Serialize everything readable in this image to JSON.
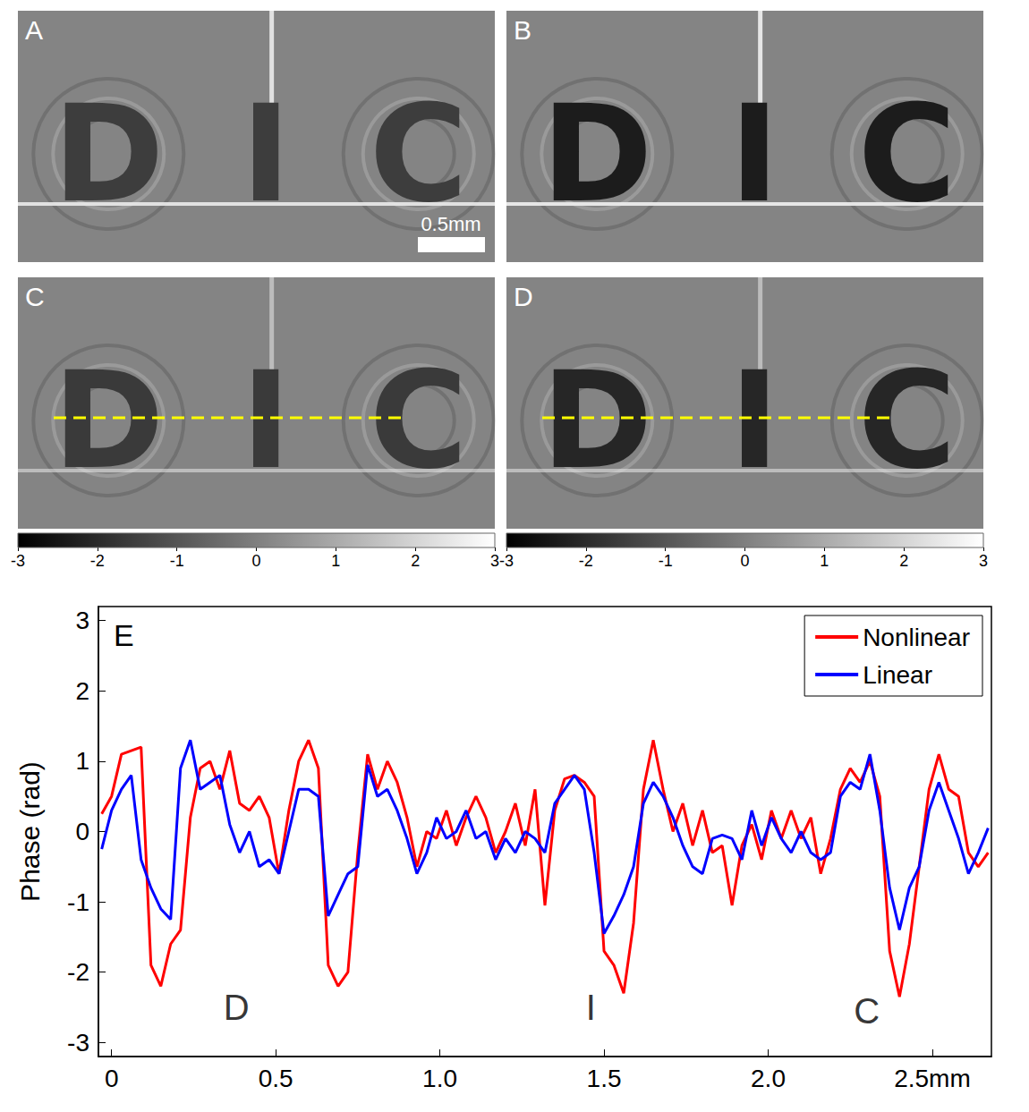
{
  "panels": [
    {
      "label": "A",
      "image_text": [
        "D",
        "I",
        "C"
      ],
      "scale_bar": "0.5mm"
    },
    {
      "label": "B",
      "image_text": [
        "D",
        "I",
        "C"
      ]
    },
    {
      "label": "C",
      "image_text": [
        "D",
        "I",
        "C"
      ],
      "colorbar": {
        "range": [
          -3,
          3
        ],
        "ticks": [
          -3,
          -2,
          -1,
          0,
          1,
          2,
          3
        ]
      }
    },
    {
      "label": "D",
      "image_text": [
        "D",
        "I",
        "C"
      ],
      "colorbar": {
        "range": [
          -3,
          3
        ],
        "ticks": [
          -3,
          -2,
          -1,
          0,
          1,
          2,
          3
        ]
      }
    }
  ],
  "chart_data": {
    "type": "line",
    "title": "E",
    "y_label": "Phase (rad)",
    "x": [
      -0.03,
      0,
      0.03,
      0.06,
      0.09,
      0.12,
      0.15,
      0.18,
      0.21,
      0.24,
      0.27,
      0.3,
      0.33,
      0.36,
      0.39,
      0.42,
      0.45,
      0.48,
      0.51,
      0.54,
      0.57,
      0.6,
      0.63,
      0.66,
      0.69,
      0.72,
      0.75,
      0.78,
      0.81,
      0.84,
      0.87,
      0.9,
      0.93,
      0.96,
      0.99,
      1.02,
      1.05,
      1.08,
      1.11,
      1.14,
      1.17,
      1.2,
      1.23,
      1.26,
      1.29,
      1.32,
      1.35,
      1.38,
      1.41,
      1.44,
      1.47,
      1.5,
      1.53,
      1.56,
      1.59,
      1.62,
      1.65,
      1.68,
      1.71,
      1.74,
      1.77,
      1.8,
      1.83,
      1.86,
      1.89,
      1.92,
      1.95,
      1.98,
      2.01,
      2.04,
      2.07,
      2.1,
      2.13,
      2.16,
      2.19,
      2.22,
      2.25,
      2.28,
      2.31,
      2.34,
      2.37,
      2.4,
      2.43,
      2.46,
      2.49,
      2.52,
      2.55,
      2.58,
      2.61,
      2.64,
      2.67
    ],
    "series": [
      {
        "name": "Nonlinear",
        "color": "#ff0000",
        "line_style": "solid",
        "values": [
          0.25,
          0.5,
          1.1,
          1.15,
          1.2,
          -1.9,
          -2.2,
          -1.6,
          -1.4,
          0.2,
          0.9,
          1.0,
          0.6,
          1.15,
          0.4,
          0.3,
          0.5,
          0.2,
          -0.6,
          0.3,
          1.0,
          1.3,
          0.9,
          -1.9,
          -2.2,
          -2.0,
          -0.3,
          1.1,
          0.6,
          1.0,
          0.7,
          0.2,
          -0.5,
          0.0,
          -0.1,
          0.3,
          -0.2,
          0.2,
          0.5,
          0.2,
          -0.3,
          0.0,
          0.4,
          -0.2,
          0.6,
          -1.05,
          0.3,
          0.75,
          0.8,
          0.7,
          0.5,
          -1.7,
          -1.9,
          -2.3,
          -1.3,
          0.6,
          1.3,
          0.6,
          0.0,
          0.4,
          -0.2,
          0.3,
          -0.3,
          -0.2,
          -1.05,
          -0.2,
          0.1,
          -0.4,
          0.3,
          -0.1,
          0.3,
          -0.1,
          0.2,
          -0.6,
          -0.1,
          0.6,
          0.9,
          0.7,
          1.0,
          0.5,
          -1.7,
          -2.35,
          -1.6,
          -0.5,
          0.6,
          1.1,
          0.6,
          0.5,
          -0.3,
          -0.5,
          -0.3
        ]
      },
      {
        "name": "Linear",
        "color": "#0000ff",
        "line_style": "solid",
        "values": [
          -0.25,
          0.3,
          0.6,
          0.8,
          -0.4,
          -0.8,
          -1.1,
          -1.25,
          0.9,
          1.3,
          0.6,
          0.7,
          0.8,
          0.1,
          -0.3,
          0.0,
          -0.5,
          -0.4,
          -0.6,
          0.0,
          0.6,
          0.6,
          0.5,
          -1.2,
          -0.9,
          -0.6,
          -0.5,
          0.95,
          0.5,
          0.6,
          0.3,
          -0.1,
          -0.6,
          -0.3,
          0.2,
          -0.1,
          0.0,
          0.3,
          -0.1,
          0.0,
          -0.4,
          -0.1,
          -0.3,
          0.0,
          -0.1,
          -0.3,
          0.4,
          0.6,
          0.8,
          0.6,
          -0.3,
          -1.45,
          -1.2,
          -0.9,
          -0.5,
          0.4,
          0.7,
          0.5,
          0.2,
          -0.2,
          -0.5,
          -0.6,
          -0.1,
          -0.05,
          -0.1,
          -0.4,
          0.3,
          -0.2,
          0.2,
          -0.1,
          -0.3,
          0.0,
          -0.3,
          -0.4,
          -0.3,
          0.5,
          0.7,
          0.6,
          1.1,
          0.3,
          -0.8,
          -1.4,
          -0.8,
          -0.5,
          0.3,
          0.7,
          0.3,
          -0.1,
          -0.6,
          -0.3,
          0.05
        ]
      }
    ],
    "xlim": [
      -0.04,
      2.68
    ],
    "xticks": [
      0,
      0.5,
      {
        "value": 1,
        "label": "1.0"
      },
      1.5,
      {
        "value": 2,
        "label": "2.0"
      },
      {
        "value": 2.5,
        "label": "2.5mm"
      }
    ],
    "ylim": [
      -3.2,
      3.2
    ],
    "yticks": [
      -3,
      -2,
      -1,
      0,
      1,
      2,
      3
    ],
    "grid": false,
    "legend": "upper right",
    "annotations": [
      {
        "text": "D",
        "x": 0.38,
        "y": -2.5
      },
      {
        "text": "I",
        "x": 1.46,
        "y": -2.5
      },
      {
        "text": "C",
        "x": 2.3,
        "y": -2.55
      }
    ]
  }
}
